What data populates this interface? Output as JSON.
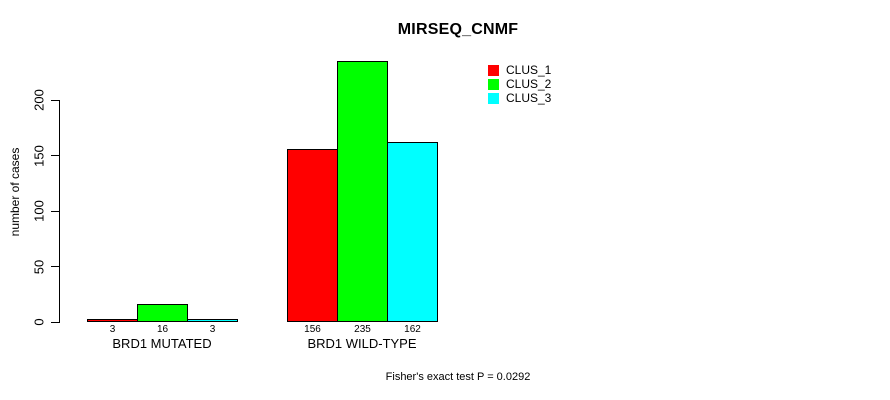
{
  "chart_data": {
    "type": "bar",
    "title": "MIRSEQ_CNMF",
    "ylabel": "number of cases",
    "xlabel": "",
    "categories": [
      "BRD1 MUTATED",
      "BRD1 WILD-TYPE"
    ],
    "series": [
      {
        "name": "CLUS_1",
        "color": "#ff0000",
        "values": [
          3,
          156
        ]
      },
      {
        "name": "CLUS_2",
        "color": "#00ff00",
        "values": [
          16,
          235
        ]
      },
      {
        "name": "CLUS_3",
        "color": "#00ffff",
        "values": [
          3,
          162
        ]
      }
    ],
    "bar_value_labels": [
      [
        "3",
        "16",
        "3"
      ],
      [
        "156",
        "235",
        "162"
      ]
    ],
    "yticks": [
      "0",
      "50",
      "100",
      "150",
      "200"
    ],
    "ytick_values": [
      0,
      50,
      100,
      150,
      200
    ],
    "ylim": [
      0,
      240
    ],
    "grid": false,
    "legend_position": "top-right",
    "bar_border_color": "#000000",
    "axis_color": "#000000"
  },
  "footer": {
    "note": "Fisher's exact test P = 0.0292"
  }
}
